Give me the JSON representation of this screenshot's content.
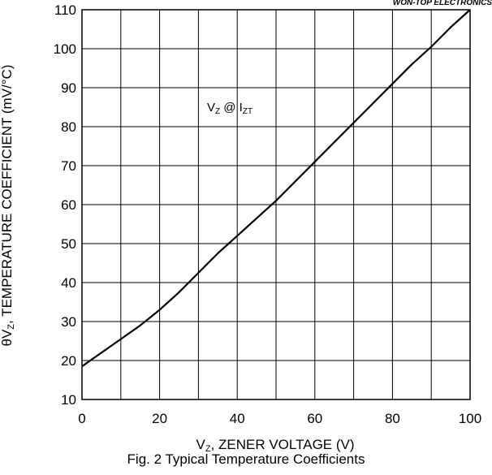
{
  "brand_fragment": "WON-TOP ELECTRONICS",
  "caption": "Fig. 2 Typical Temperature Coefficients",
  "chart_data": {
    "type": "line",
    "title": "",
    "xlabel": {
      "main": "V",
      "sub": "Z",
      "rest": ", ZENER VOLTAGE (V)"
    },
    "ylabel": {
      "pre": "θV",
      "sub": "Z",
      "rest": ", TEMPERATURE COEFFICIENT (mV/°C)"
    },
    "xlim": [
      0,
      100
    ],
    "ylim": [
      10,
      110
    ],
    "x_ticks": [
      "0",
      "20",
      "40",
      "60",
      "80",
      "100"
    ],
    "y_ticks": [
      "10",
      "20",
      "30",
      "40",
      "50",
      "60",
      "70",
      "80",
      "90",
      "100",
      "110"
    ],
    "grid": true,
    "annotation": {
      "v": "V",
      "v_sub": "Z",
      "mid": " @ I",
      "i_sub": "ZT"
    },
    "series": [
      {
        "color": "#000000",
        "x": [
          0,
          5,
          10,
          15,
          20,
          25,
          30,
          35,
          40,
          45,
          50,
          55,
          60,
          65,
          70,
          75,
          80,
          85,
          90,
          95,
          100
        ],
        "y": [
          18.5,
          22,
          25.5,
          29,
          33,
          37.5,
          42.5,
          47.5,
          52,
          56.5,
          61,
          66,
          71,
          76,
          81,
          86,
          91,
          96,
          100.5,
          105.5,
          110
        ]
      }
    ]
  }
}
